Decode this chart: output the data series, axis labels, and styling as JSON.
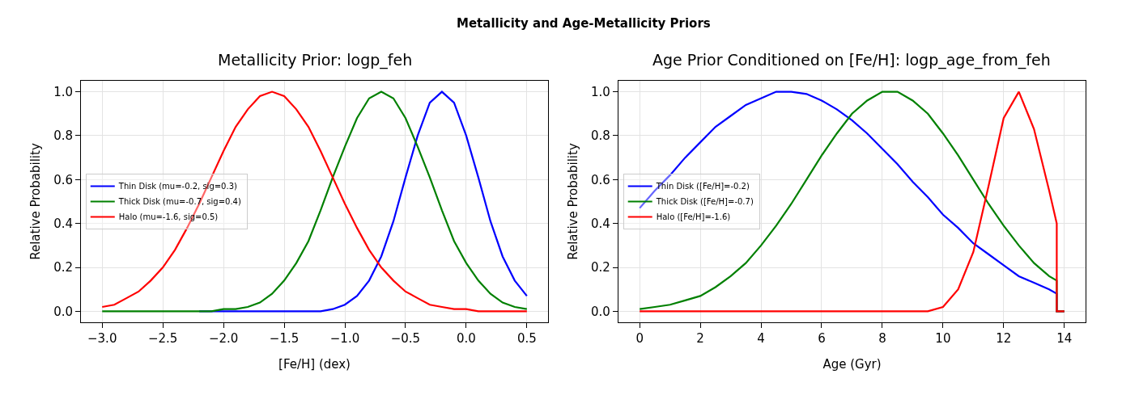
{
  "chart_data": [
    {
      "type": "line",
      "title": "Metallicity and Age-Metallicity Priors",
      "subtitle": "Metallicity Prior: logp_feh",
      "xlabel": "[Fe/H] (dex)",
      "ylabel": "Relative Probability",
      "x": [
        -3.0,
        -2.9,
        -2.8,
        -2.7,
        -2.6,
        -2.5,
        -2.4,
        -2.3,
        -2.2,
        -2.1,
        -2.0,
        -1.9,
        -1.8,
        -1.7,
        -1.6,
        -1.5,
        -1.4,
        -1.3,
        -1.2,
        -1.1,
        -1.0,
        -0.9,
        -0.8,
        -0.7,
        -0.6,
        -0.5,
        -0.4,
        -0.3,
        -0.2,
        -0.1,
        0.0,
        0.1,
        0.2,
        0.3,
        0.4,
        0.5
      ],
      "series": [
        {
          "name": "Thin Disk (mu=-0.2, sig=0.3)",
          "color": "#0000ff",
          "values": [
            null,
            null,
            null,
            null,
            null,
            null,
            null,
            null,
            0,
            0,
            0,
            0,
            0,
            0,
            0,
            0,
            0,
            0,
            0,
            0.01,
            0.03,
            0.07,
            0.14,
            0.25,
            0.41,
            0.61,
            0.8,
            0.95,
            1.0,
            0.95,
            0.8,
            0.61,
            0.41,
            0.25,
            0.14,
            0.07
          ]
        },
        {
          "name": "Thick Disk (mu=-0.7, sig=0.4)",
          "color": "#008000",
          "values": [
            0,
            0,
            0,
            0,
            0,
            0,
            0,
            0,
            0,
            0,
            0.01,
            0.01,
            0.02,
            0.04,
            0.08,
            0.14,
            0.22,
            0.32,
            0.46,
            0.61,
            0.75,
            0.88,
            0.97,
            1.0,
            0.97,
            0.88,
            0.75,
            0.61,
            0.46,
            0.32,
            0.22,
            0.14,
            0.08,
            0.04,
            0.02,
            0.01
          ]
        },
        {
          "name": "Halo (mu=-1.6, sig=0.5)",
          "color": "#ff0000",
          "values": [
            0.02,
            0.03,
            0.06,
            0.09,
            0.14,
            0.2,
            0.28,
            0.38,
            0.49,
            0.61,
            0.73,
            0.84,
            0.92,
            0.98,
            1.0,
            0.98,
            0.92,
            0.84,
            0.73,
            0.61,
            0.49,
            0.38,
            0.28,
            0.2,
            0.14,
            0.09,
            0.06,
            0.03,
            0.02,
            0.01,
            0.01,
            0,
            0,
            0,
            0,
            0
          ]
        }
      ],
      "xlim": [
        -3.175,
        0.675
      ],
      "xticks": [
        {
          "value": -3.0,
          "label": "−3.0"
        },
        {
          "value": -2.5,
          "label": "−2.5"
        },
        {
          "value": -2.0,
          "label": "−2.0"
        },
        {
          "value": -1.5,
          "label": "−1.5"
        },
        {
          "value": -1.0,
          "label": "−1.0"
        },
        {
          "value": -0.5,
          "label": "−0.5"
        },
        {
          "value": 0,
          "label": "0.0"
        },
        {
          "value": 0.5,
          "label": "0.5"
        }
      ],
      "ylim": [
        -0.05,
        1.05
      ],
      "yticks": [
        {
          "value": 0,
          "label": "0.0"
        },
        {
          "value": 0.2,
          "label": "0.2"
        },
        {
          "value": 0.4,
          "label": "0.4"
        },
        {
          "value": 0.6,
          "label": "0.6"
        },
        {
          "value": 0.8,
          "label": "0.8"
        },
        {
          "value": 1,
          "label": "1.0"
        }
      ],
      "grid": true,
      "legend": "left",
      "line_style": "solid",
      "marker": "none"
    },
    {
      "type": "line",
      "title": "Age Prior Conditioned on [Fe/H]: logp_age_from_feh",
      "xlabel": "Age (Gyr)",
      "ylabel": "Relative Probability",
      "x": [
        0,
        0.5,
        1,
        1.5,
        2,
        2.5,
        3,
        3.5,
        4,
        4.5,
        5,
        5.5,
        6,
        6.5,
        7,
        7.5,
        8,
        8.5,
        9,
        9.5,
        10,
        10.5,
        11,
        11.5,
        12,
        12.5,
        13,
        13.5,
        13.75,
        13.75,
        14
      ],
      "series": [
        {
          "name": "Thin Disk ([Fe/H]=-0.2)",
          "color": "#0000ff",
          "values": [
            0.47,
            0.55,
            0.62,
            0.7,
            0.77,
            0.84,
            0.89,
            0.94,
            0.97,
            1.0,
            1.0,
            0.99,
            0.96,
            0.92,
            0.87,
            0.81,
            0.74,
            0.67,
            0.59,
            0.52,
            0.44,
            0.38,
            0.31,
            0.26,
            0.21,
            0.16,
            0.13,
            0.1,
            0.08,
            0,
            0
          ]
        },
        {
          "name": "Thick Disk ([Fe/H]=-0.7)",
          "color": "#008000",
          "values": [
            0.01,
            0.02,
            0.03,
            0.05,
            0.07,
            0.11,
            0.16,
            0.22,
            0.3,
            0.39,
            0.49,
            0.6,
            0.71,
            0.81,
            0.9,
            0.96,
            1.0,
            1.0,
            0.96,
            0.9,
            0.81,
            0.71,
            0.6,
            0.49,
            0.39,
            0.3,
            0.22,
            0.16,
            0.14,
            0,
            0
          ]
        },
        {
          "name": "Halo ([Fe/H]=-1.6)",
          "color": "#ff0000",
          "values": [
            0,
            0,
            0,
            0,
            0,
            0,
            0,
            0,
            0,
            0,
            0,
            0,
            0,
            0,
            0,
            0,
            0,
            0,
            0,
            0,
            0.02,
            0.1,
            0.27,
            0.57,
            0.88,
            1.0,
            0.83,
            0.55,
            0.4,
            0,
            0
          ]
        }
      ],
      "xlim": [
        -0.7,
        14.7
      ],
      "xticks": [
        0,
        2,
        4,
        6,
        8,
        10,
        12,
        14
      ],
      "ylim": [
        -0.05,
        1.05
      ],
      "yticks": [
        {
          "value": 0,
          "label": "0.0"
        },
        {
          "value": 0.2,
          "label": "0.2"
        },
        {
          "value": 0.4,
          "label": "0.4"
        },
        {
          "value": 0.6,
          "label": "0.6"
        },
        {
          "value": 0.8,
          "label": "0.8"
        },
        {
          "value": 1,
          "label": "1.0"
        }
      ],
      "grid": true,
      "legend": "left",
      "line_style": "solid",
      "marker": "none"
    }
  ]
}
